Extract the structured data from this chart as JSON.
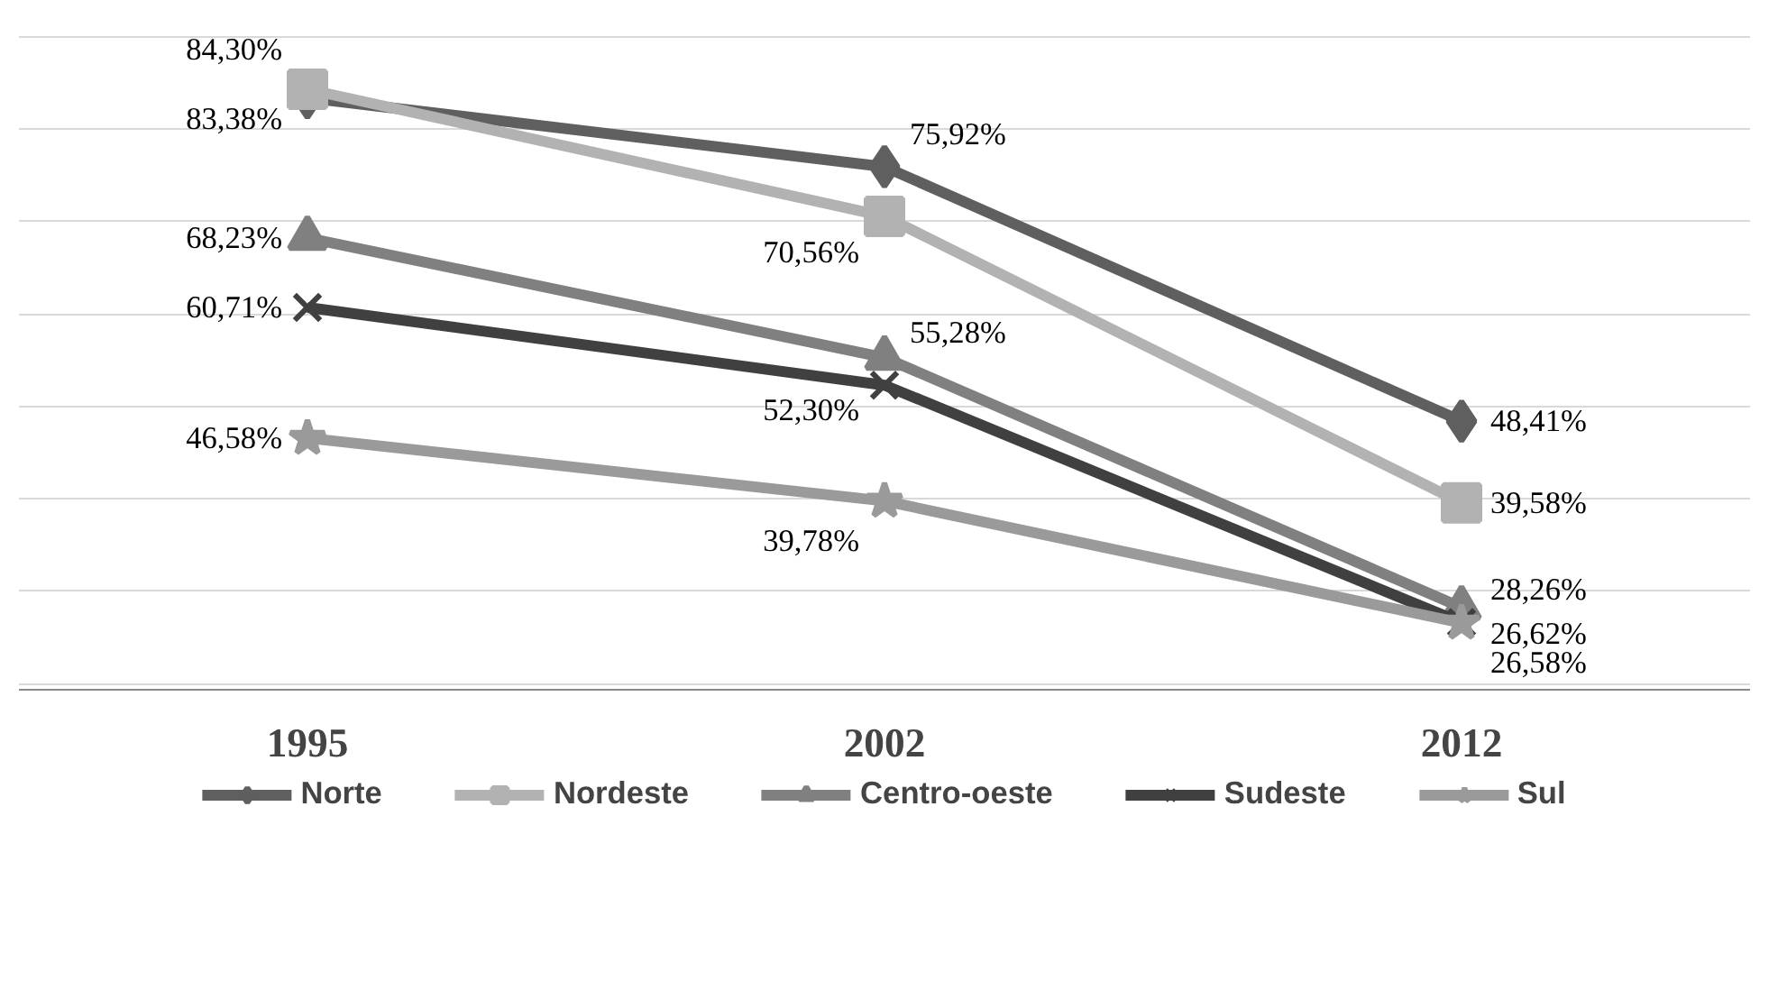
{
  "chart_data": {
    "type": "line",
    "categories": [
      "1995",
      "2002",
      "2012"
    ],
    "series": [
      {
        "name": "Norte",
        "color": "#5f5f5f",
        "marker": "diamond",
        "values": [
          83.38,
          75.92,
          48.41
        ],
        "value_labels": [
          "83,38%",
          "75,92%",
          "48,41%"
        ]
      },
      {
        "name": "Nordeste",
        "color": "#b2b2b2",
        "marker": "square",
        "values": [
          84.3,
          70.56,
          39.58
        ],
        "value_labels": [
          "84,30%",
          "70,56%",
          "39,58%"
        ]
      },
      {
        "name": "Centro-oeste",
        "color": "#808080",
        "marker": "triangle",
        "values": [
          68.23,
          55.28,
          28.26
        ],
        "value_labels": [
          "68,23%",
          "55,28%",
          "28,26%"
        ]
      },
      {
        "name": "Sudeste",
        "color": "#404040",
        "marker": "cross",
        "values": [
          60.71,
          52.3,
          26.62
        ],
        "value_labels": [
          "60,71%",
          "52,30%",
          "26,62%"
        ]
      },
      {
        "name": "Sul",
        "color": "#9a9a9a",
        "marker": "star",
        "values": [
          46.58,
          39.78,
          26.58
        ],
        "value_labels": [
          "46,58%",
          "39,78%",
          "26,58%"
        ]
      }
    ],
    "tick_labels": "x",
    "grid": "y",
    "legend": "bottom"
  }
}
